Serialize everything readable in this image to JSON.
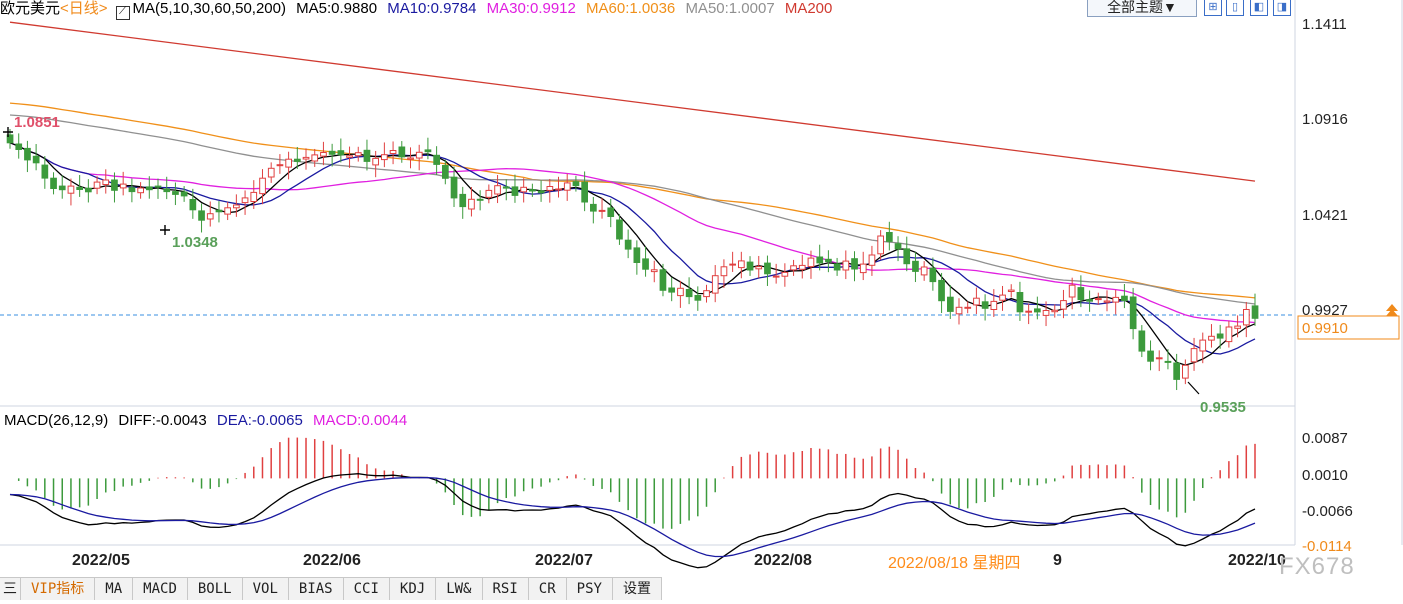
{
  "header": {
    "symbol": "欧元美元",
    "period": "<日线>",
    "ma_spec": "MA(5,10,30,60,50,200)",
    "ma5": "MA5:0.9880",
    "ma10": "MA10:0.9784",
    "ma30": "MA30:0.9912",
    "ma60": "MA60:1.0036",
    "ma50": "MA50:1.0007",
    "ma200": "MA200",
    "theme_button": "全部主题▼"
  },
  "macd_header": {
    "spec": "MACD(26,12,9)",
    "diff": "DIFF:-0.0043",
    "dea": "DEA:-0.0065",
    "macd": "MACD:0.0044"
  },
  "colors": {
    "ma5": "#000000",
    "ma10": "#1a1aa0",
    "ma30": "#e020e0",
    "ma60": "#f0901a",
    "ma50": "#909090",
    "ma200": "#d03a30",
    "up": "#e04040",
    "down": "#3c9a3c"
  },
  "price_axis": {
    "ticks": [
      "1.1411",
      "1.0916",
      "1.0421",
      "0.9927"
    ],
    "current_price": "0.9910",
    "high_label": "1.0851",
    "low_label1": "1.0348",
    "low_label2": "0.9535"
  },
  "macd_axis": {
    "ticks": [
      "0.0087",
      "0.0010",
      "-0.0066",
      "-0.0114"
    ]
  },
  "date_axis": {
    "labels": [
      "2022/05",
      "2022/06",
      "2022/07",
      "2022/08",
      "9",
      "2022/10"
    ],
    "tooltip": "2022/08/18 星期四"
  },
  "tabs": [
    "三",
    "VIP指标",
    "MA",
    "MACD",
    "BOLL",
    "VOL",
    "BIAS",
    "CCI",
    "KDJ",
    "LW&",
    "RSI",
    "CR",
    "PSY",
    "设置"
  ],
  "watermark": "FX678",
  "chart_data": {
    "type": "line",
    "ylim": [
      0.9535,
      1.1411
    ],
    "ma200": [
      1.141,
      1.0605
    ],
    "ma60_start": 1.1,
    "ma50_start": 1.094,
    "close": [
      1.0799,
      1.0765,
      1.0713,
      1.0698,
      1.062,
      1.0568,
      1.0562,
      1.058,
      1.0563,
      1.0551,
      1.06,
      1.0611,
      1.0559,
      1.059,
      1.0552,
      1.057,
      1.0562,
      1.0577,
      1.0552,
      1.0538,
      1.053,
      1.046,
      1.0407,
      1.044,
      1.045,
      1.047,
      1.0484,
      1.052,
      1.0548,
      1.062,
      1.067,
      1.0688,
      1.0716,
      1.0705,
      1.0725,
      1.0738,
      1.075,
      1.0741,
      1.0738,
      1.0734,
      1.0749,
      1.0705,
      1.072,
      1.0739,
      1.076,
      1.0728,
      1.0722,
      1.0751,
      1.0754,
      1.069,
      1.0619,
      1.052,
      1.0476,
      1.0513,
      1.0511,
      1.0558,
      1.0582,
      1.057,
      1.0533,
      1.0574,
      1.0555,
      1.0546,
      1.0578,
      1.0565,
      1.0596,
      1.0582,
      1.0499,
      1.0453,
      1.0457,
      1.0426,
      1.0312,
      1.0261,
      1.0193,
      1.0159,
      1.0156,
      1.0052,
      1.0043,
      1.0062,
      1.002,
      1.0002,
      1.005,
      1.0126,
      1.0171,
      1.0185,
      1.0201,
      1.0155,
      1.0172,
      1.0136,
      1.0124,
      1.0143,
      1.0176,
      1.0178,
      1.0215,
      1.0191,
      1.0198,
      1.0155,
      1.02,
      1.016,
      1.0185,
      1.0231,
      1.0327,
      1.03,
      1.0262,
      1.0187,
      1.0148,
      1.017,
      1.0096,
      0.9999,
      0.9945,
      0.9966,
      0.9966,
      1.0012,
      0.9961,
      0.9996,
      1.0028,
      1.0053,
      0.9943,
      0.9946,
      0.9943,
      0.995,
      0.9951,
      1.0,
      1.0078,
      1.0005,
      0.9997,
      1.001,
      0.9998,
      1.0016,
      1.0,
      0.9858,
      0.9744,
      0.9693,
      0.971,
      0.969,
      0.9601,
      0.9672,
      0.9757,
      0.98,
      0.9819,
      0.981,
      0.9866,
      0.9871,
      0.9955,
      0.991
    ]
  }
}
